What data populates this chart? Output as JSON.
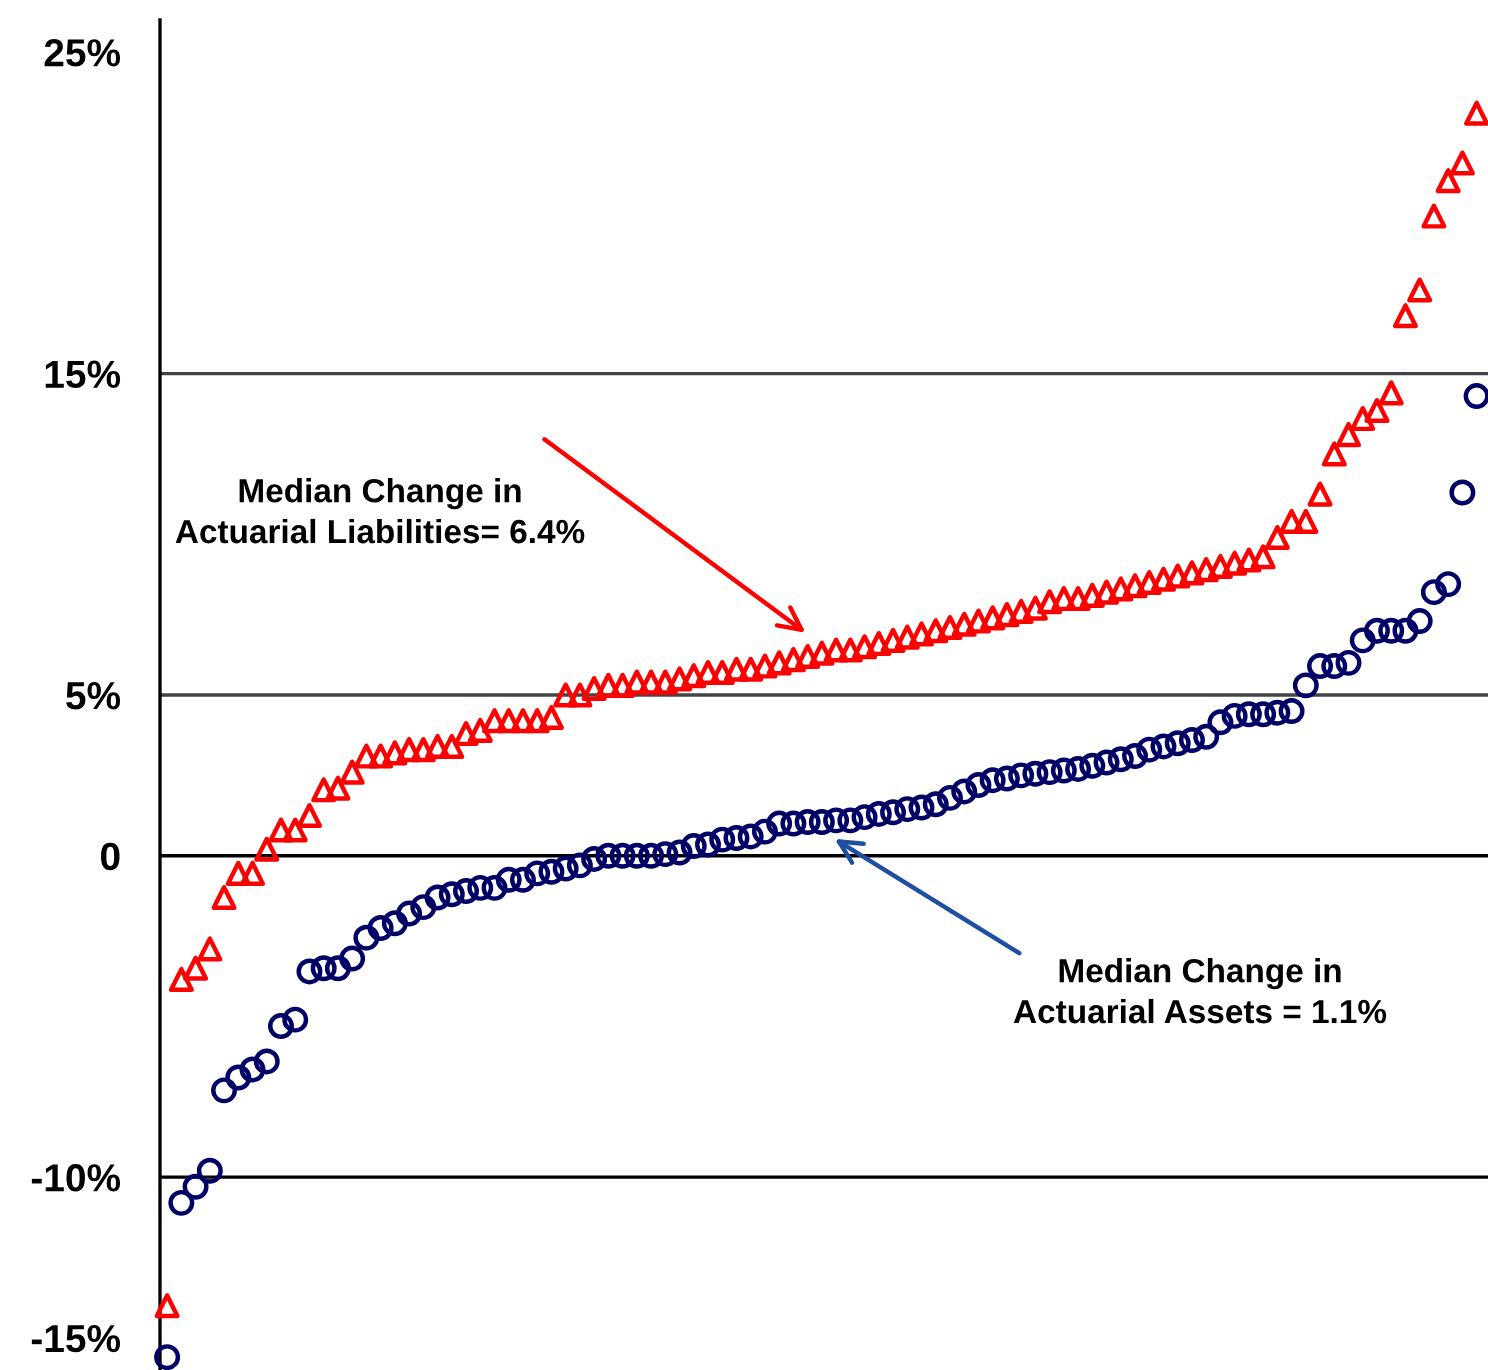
{
  "chart_data": {
    "type": "scatter",
    "categories": [
      null,
      null,
      null,
      null,
      null,
      null,
      null,
      null,
      null,
      null,
      null,
      null,
      null,
      null,
      null,
      null,
      null,
      null,
      null,
      null,
      null,
      null,
      null,
      null,
      null,
      null,
      null,
      null,
      null,
      null,
      null,
      null,
      null,
      null,
      null,
      null,
      null,
      null,
      null,
      null,
      null,
      null,
      null,
      null,
      null,
      null,
      null,
      null,
      null,
      null,
      null,
      null,
      null,
      null,
      null,
      null,
      null,
      null,
      null,
      null,
      null,
      null,
      null,
      null,
      null,
      null,
      null,
      null,
      null,
      null,
      null,
      null,
      null,
      null,
      null,
      null,
      null,
      null,
      null,
      null,
      null,
      null,
      null,
      null,
      null,
      null,
      null,
      null,
      null,
      null,
      null,
      null,
      null
    ],
    "series": [
      {
        "color": "#ff0000",
        "marker": "triangle",
        "values": [
          -14.0,
          -3.85,
          -3.5,
          -2.9,
          -1.3,
          -0.55,
          -0.55,
          0.2,
          0.8,
          0.8,
          1.25,
          2.05,
          2.1,
          2.6,
          3.1,
          3.1,
          3.2,
          3.3,
          3.3,
          3.4,
          3.4,
          3.8,
          3.9,
          4.2,
          4.2,
          4.2,
          4.2,
          4.3,
          5.0,
          5.0,
          5.2,
          5.3,
          5.3,
          5.4,
          5.4,
          5.4,
          5.5,
          5.6,
          5.7,
          5.7,
          5.8,
          5.8,
          5.9,
          6.0,
          6.1,
          6.2,
          6.3,
          6.4,
          6.4,
          6.5,
          6.6,
          6.7,
          6.8,
          6.9,
          7.0,
          7.1,
          7.2,
          7.3,
          7.4,
          7.5,
          7.6,
          7.7,
          7.9,
          8.0,
          8.0,
          8.1,
          8.2,
          8.3,
          8.4,
          8.5,
          8.6,
          8.7,
          8.8,
          8.9,
          9.0,
          9.1,
          9.2,
          9.3,
          9.9,
          10.4,
          10.4,
          11.25,
          12.5,
          13.1,
          13.6,
          13.85,
          14.4,
          16.8,
          17.6,
          19.9,
          21.0,
          21.55,
          23.1
        ]
      },
      {
        "color": "#000066",
        "marker": "circle",
        "values": [
          -15.6,
          -10.8,
          -10.3,
          -9.8,
          -7.3,
          -6.9,
          -6.65,
          -6.4,
          -5.3,
          -5.1,
          -3.6,
          -3.5,
          -3.5,
          -3.2,
          -2.55,
          -2.25,
          -2.1,
          -1.8,
          -1.6,
          -1.3,
          -1.2,
          -1.1,
          -1.0,
          -1.0,
          -0.75,
          -0.75,
          -0.55,
          -0.5,
          -0.4,
          -0.3,
          -0.1,
          0.0,
          0.0,
          0.0,
          0.0,
          0.05,
          0.1,
          0.3,
          0.35,
          0.5,
          0.55,
          0.6,
          0.75,
          1.0,
          1.0,
          1.05,
          1.05,
          1.1,
          1.1,
          1.2,
          1.3,
          1.35,
          1.45,
          1.5,
          1.6,
          1.8,
          2.0,
          2.2,
          2.35,
          2.4,
          2.5,
          2.55,
          2.6,
          2.65,
          2.7,
          2.8,
          2.9,
          3.0,
          3.1,
          3.3,
          3.4,
          3.5,
          3.6,
          3.7,
          4.15,
          4.35,
          4.4,
          4.4,
          4.45,
          4.5,
          5.3,
          5.9,
          5.9,
          6.0,
          6.7,
          7.0,
          7.0,
          7.0,
          7.3,
          8.2,
          8.45,
          11.3,
          14.3
        ]
      }
    ],
    "ylim": [
      -16,
      26
    ],
    "yticks": [
      {
        "value": 25,
        "label": "25%"
      },
      {
        "value": 15,
        "label": "15%"
      },
      {
        "value": 5,
        "label": "5%"
      },
      0,
      {
        "value": -10,
        "label": "-10%"
      },
      {
        "value": -15,
        "label": "-15%"
      }
    ],
    "ref_lines": [
      {
        "axis": "y",
        "value": 15,
        "color": "#444444"
      },
      {
        "axis": "y",
        "value": 5,
        "color": "#444444"
      },
      {
        "axis": "y",
        "value": 0,
        "color": "#000000"
      },
      {
        "axis": "y",
        "value": -10,
        "color": "#000000"
      }
    ],
    "annotations": [
      "Median Change in\nActuarial Liabilities= 6.4%",
      "Median Change in\nActuarial Assets = 1.1%"
    ]
  }
}
